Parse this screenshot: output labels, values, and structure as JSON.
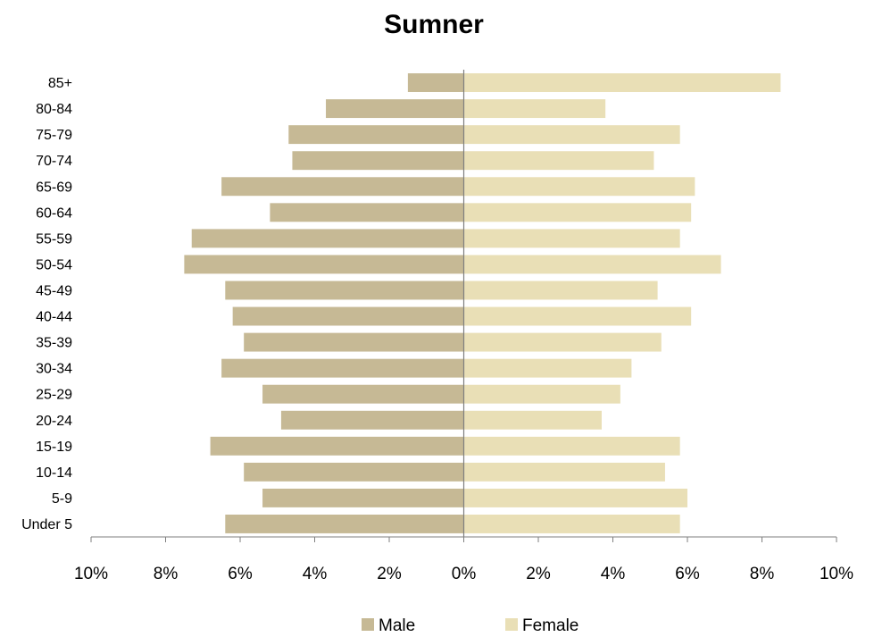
{
  "chart_data": {
    "type": "bar",
    "orientation": "horizontal",
    "subtype": "population-pyramid",
    "title": "Sumner",
    "xlabel": "",
    "ylabel": "",
    "categories": [
      "Under 5",
      "5-9",
      "10-14",
      "15-19",
      "20-24",
      "25-29",
      "30-34",
      "35-39",
      "40-44",
      "45-49",
      "50-54",
      "55-59",
      "60-64",
      "65-69",
      "70-74",
      "75-79",
      "80-84",
      "85+"
    ],
    "series": [
      {
        "name": "Male",
        "color": "#c6b995",
        "direction": "left",
        "values": [
          6.4,
          5.4,
          5.9,
          6.8,
          4.9,
          5.4,
          6.5,
          5.9,
          6.2,
          6.4,
          7.5,
          7.3,
          5.2,
          6.5,
          4.6,
          4.7,
          3.7,
          1.5
        ]
      },
      {
        "name": "Female",
        "color": "#e9dfb6",
        "direction": "right",
        "values": [
          5.8,
          6.0,
          5.4,
          5.8,
          3.7,
          4.2,
          4.5,
          5.3,
          6.1,
          5.2,
          6.9,
          5.8,
          6.1,
          6.2,
          5.1,
          5.8,
          3.8,
          8.5
        ]
      }
    ],
    "xlim": [
      -10,
      10
    ],
    "xticks": [
      -10,
      -8,
      -6,
      -4,
      -2,
      0,
      2,
      4,
      6,
      8,
      10
    ],
    "xtick_labels": [
      "10%",
      "8%",
      "6%",
      "4%",
      "2%",
      "0%",
      "2%",
      "4%",
      "6%",
      "8%",
      "10%"
    ],
    "grid": false,
    "legend_position": "bottom"
  }
}
